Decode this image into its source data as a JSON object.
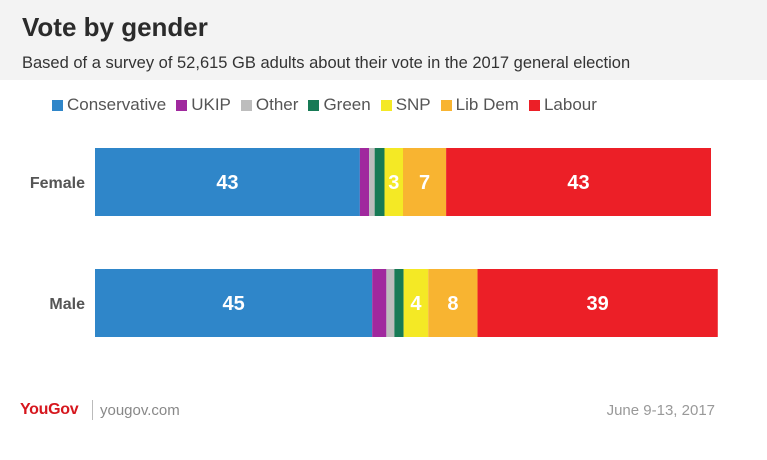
{
  "header": {
    "title": "Vote by gender",
    "subtitle": "Based of a survey of 52,615 GB adults about their vote in the 2017 general election"
  },
  "chart_data": {
    "type": "bar",
    "orientation": "horizontal",
    "stacked": true,
    "categories": [
      "Female",
      "Male"
    ],
    "series": [
      {
        "name": "Conservative",
        "color": "#2f86c9",
        "values": [
          43,
          45
        ],
        "labels": [
          "43",
          "45"
        ]
      },
      {
        "name": "UKIP",
        "color": "#a0299e",
        "values": [
          1.5,
          2.3
        ],
        "labels": [
          "",
          ""
        ]
      },
      {
        "name": "Other",
        "color": "#bdbdbd",
        "values": [
          0.9,
          1.3
        ],
        "labels": [
          "",
          ""
        ]
      },
      {
        "name": "Green",
        "color": "#177a55",
        "values": [
          1.6,
          1.5
        ],
        "labels": [
          "",
          ""
        ]
      },
      {
        "name": "SNP",
        "color": "#f4e925",
        "values": [
          3,
          4
        ],
        "labels": [
          "3",
          "4"
        ]
      },
      {
        "name": "Lib Dem",
        "color": "#f8b431",
        "values": [
          7,
          8
        ],
        "labels": [
          "7",
          "8"
        ]
      },
      {
        "name": "Labour",
        "color": "#ec1f27",
        "values": [
          43,
          39
        ],
        "labels": [
          "43",
          "39"
        ]
      }
    ],
    "xlim": [
      0,
      100
    ],
    "legend_position": "top"
  },
  "footer": {
    "logo": "YouGov",
    "url": "yougov.com",
    "date": "June 9-13, 2017"
  }
}
